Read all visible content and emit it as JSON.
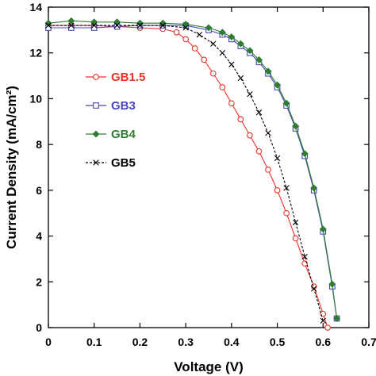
{
  "chart_data": {
    "type": "line",
    "xlabel": "Voltage (V)",
    "ylabel": "Current Density (mA/cm²)",
    "xlim": [
      0,
      0.7
    ],
    "ylim": [
      0,
      14
    ],
    "x_ticks": [
      "0",
      "0.1",
      "0.2",
      "0.3",
      "0.4",
      "0.5",
      "0.6",
      "0.7"
    ],
    "y_ticks": [
      "0",
      "2",
      "4",
      "6",
      "8",
      "10",
      "12",
      "14"
    ],
    "grid": false,
    "legend_position": "left, mid-height",
    "series": [
      {
        "name": "GB1.5",
        "color": "#e8332a",
        "marker": "circle",
        "x": [
          0,
          0.05,
          0.1,
          0.15,
          0.2,
          0.25,
          0.28,
          0.3,
          0.32,
          0.34,
          0.36,
          0.38,
          0.4,
          0.42,
          0.44,
          0.46,
          0.48,
          0.5,
          0.52,
          0.54,
          0.56,
          0.58,
          0.6,
          0.61
        ],
        "y": [
          13.2,
          13.2,
          13.2,
          13.15,
          13.1,
          13.05,
          12.9,
          12.6,
          12.2,
          11.7,
          11.1,
          10.5,
          9.8,
          9.1,
          8.4,
          7.7,
          6.9,
          6.0,
          5.0,
          3.9,
          2.8,
          1.8,
          0.6,
          0
        ]
      },
      {
        "name": "GB3",
        "color": "#4848b8",
        "marker": "square",
        "x": [
          0,
          0.05,
          0.1,
          0.15,
          0.2,
          0.25,
          0.3,
          0.35,
          0.38,
          0.4,
          0.42,
          0.44,
          0.46,
          0.48,
          0.5,
          0.52,
          0.54,
          0.56,
          0.58,
          0.6,
          0.62,
          0.63
        ],
        "y": [
          13.1,
          13.1,
          13.1,
          13.15,
          13.2,
          13.2,
          13.2,
          13.0,
          12.8,
          12.6,
          12.3,
          12.0,
          11.6,
          11.1,
          10.5,
          9.7,
          8.7,
          7.5,
          6.0,
          4.2,
          1.8,
          0.4
        ]
      },
      {
        "name": "GB4",
        "color": "#2e7d32",
        "marker": "diamond",
        "x": [
          0,
          0.05,
          0.1,
          0.15,
          0.2,
          0.25,
          0.3,
          0.35,
          0.38,
          0.4,
          0.42,
          0.44,
          0.46,
          0.48,
          0.5,
          0.52,
          0.54,
          0.56,
          0.58,
          0.6,
          0.62,
          0.63
        ],
        "y": [
          13.3,
          13.4,
          13.35,
          13.35,
          13.3,
          13.3,
          13.25,
          13.1,
          12.9,
          12.7,
          12.4,
          12.1,
          11.7,
          11.2,
          10.6,
          9.8,
          8.8,
          7.6,
          6.1,
          4.3,
          1.9,
          0.4
        ]
      },
      {
        "name": "GB5",
        "color": "#000000",
        "marker": "x",
        "x": [
          0,
          0.05,
          0.1,
          0.15,
          0.2,
          0.25,
          0.3,
          0.33,
          0.36,
          0.38,
          0.4,
          0.42,
          0.44,
          0.46,
          0.48,
          0.5,
          0.52,
          0.54,
          0.56,
          0.58,
          0.6
        ],
        "y": [
          13.2,
          13.2,
          13.2,
          13.2,
          13.2,
          13.2,
          13.1,
          12.8,
          12.4,
          12.0,
          11.5,
          10.9,
          10.2,
          9.4,
          8.5,
          7.4,
          6.1,
          4.6,
          3.1,
          1.7,
          0.3
        ]
      }
    ]
  }
}
